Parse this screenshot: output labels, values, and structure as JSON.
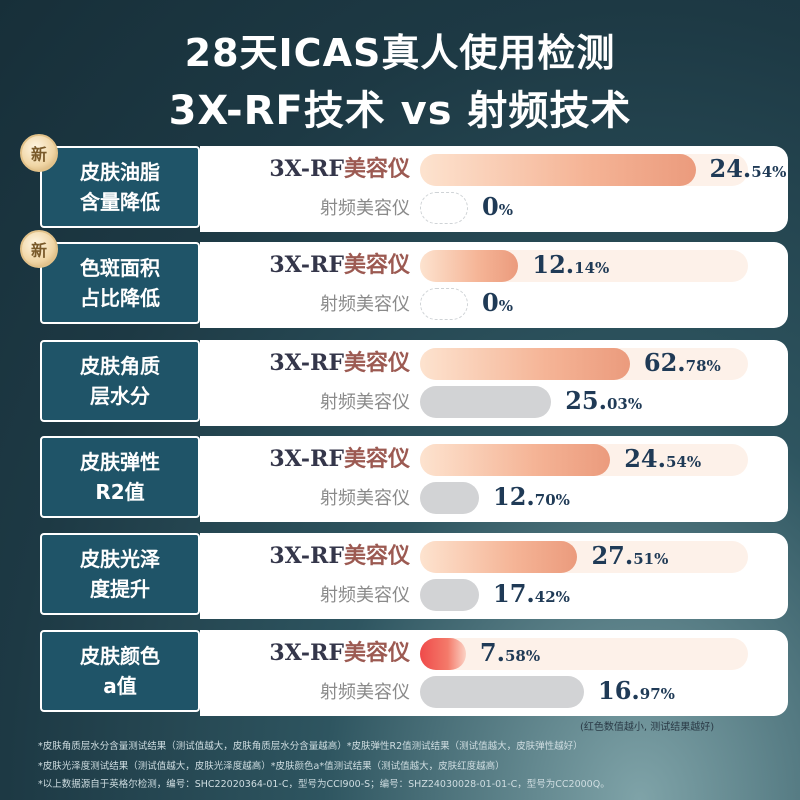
{
  "title_line1": "28天ICAS真人使用检测",
  "title_line2": "3X-RF技术 vs 射频技术",
  "new_badge": "新",
  "product_a_prefix": "3X-RF",
  "product_a_suffix": "美容仪",
  "product_b": "射频美容仪",
  "note": "(红色数值越小, 测试结果越好)",
  "footnotes": [
    "*皮肤角质层水分含量测试结果（测试值越大，皮肤角质层水分含量越高）*皮肤弹性R2值测试结果（测试值越大，皮肤弹性越好）",
    "*皮肤光泽度测试结果（测试值越大，皮肤光泽度越高）*皮肤颜色a*值测试结果（测试值越大，皮肤红度越高）",
    "*以上数据源自于英格尔检测，编号：SHC22020364-01-C，型号为CCI900-S；编号：SHZ24030028-01-01-C，型号为CC2000Q。"
  ],
  "colors": {
    "label_bg": "#1f5468",
    "bar_a": "#f5b496",
    "bar_a_red": "#ef4a4a",
    "bar_b": "#d2d3d5",
    "value": "#1f3a56"
  },
  "chart_data": {
    "type": "bar",
    "title": "28天ICAS真人使用检测",
    "subtitle": "3X-RF技术 vs 射频技术",
    "categories": [
      {
        "line1": "皮肤油脂",
        "line2": "含量降低",
        "is_new": true
      },
      {
        "line1": "色斑面积",
        "line2": "占比降低",
        "is_new": true
      },
      {
        "line1": "皮肤角质",
        "line2": "层水分",
        "is_new": false
      },
      {
        "line1": "皮肤弹性",
        "line2": "R2值",
        "is_new": false
      },
      {
        "line1": "皮肤光泽",
        "line2": "度提升",
        "is_new": false
      },
      {
        "line1": "皮肤颜色",
        "line2": "a值",
        "is_new": false
      }
    ],
    "series": [
      {
        "name": "3X-RF美容仪",
        "values": [
          24.54,
          12.14,
          62.78,
          24.54,
          27.51,
          7.58
        ],
        "labels": [
          {
            "main": "24.",
            "small": "54%"
          },
          {
            "main": "12.",
            "small": "14%"
          },
          {
            "main": "62.",
            "small": "78%"
          },
          {
            "main": "24.",
            "small": "54%"
          },
          {
            "main": "27.",
            "small": "51%"
          },
          {
            "main": "7.",
            "small": "58%"
          }
        ]
      },
      {
        "name": "射频美容仪",
        "values": [
          0,
          0,
          25.03,
          12.7,
          17.42,
          16.97
        ],
        "labels": [
          {
            "main": "0",
            "small": "%"
          },
          {
            "main": "0",
            "small": "%"
          },
          {
            "main": "25.",
            "small": "03%"
          },
          {
            "main": "12.",
            "small": "70%"
          },
          {
            "main": "17.",
            "small": "42%"
          },
          {
            "main": "16.",
            "small": "97%"
          }
        ]
      }
    ],
    "red_highlight_index": 5
  }
}
